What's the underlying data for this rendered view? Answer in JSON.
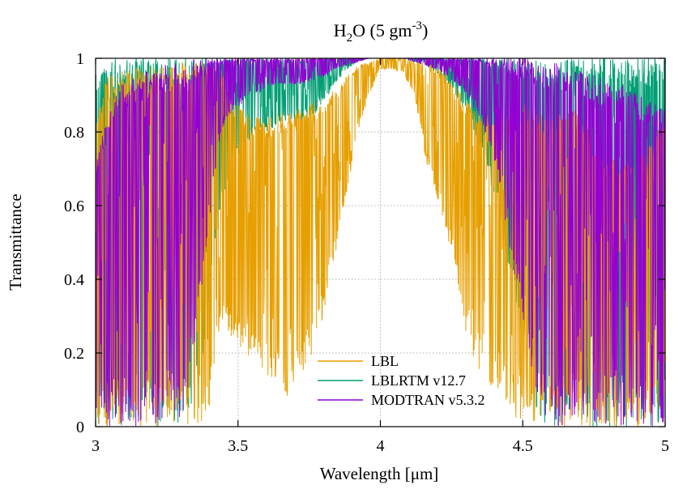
{
  "chart_data": {
    "type": "line",
    "title": {
      "base": "H",
      "base_sub": "2",
      "mid": "O (5 gm",
      "mid_sup": "-3",
      "end": ")"
    },
    "xlabel": "Wavelength  [μm]",
    "ylabel": "Transmittance",
    "xlim": [
      3,
      5
    ],
    "ylim": [
      0,
      1
    ],
    "x_ticks": [
      "3",
      "3.5",
      "4",
      "4.5",
      "5"
    ],
    "x_tick_values": [
      3,
      3.5,
      4,
      4.5,
      5
    ],
    "y_ticks": [
      "0",
      "0.2",
      "0.4",
      "0.6",
      "0.8",
      "1"
    ],
    "y_tick_values": [
      0,
      0.2,
      0.4,
      0.6,
      0.8,
      1
    ],
    "grid": true,
    "legend_position": "bottom-center",
    "series": [
      {
        "name": "LBL",
        "color": "#e69f00",
        "x": [
          3.0,
          3.04,
          3.08,
          3.12,
          3.16,
          3.2,
          3.24,
          3.28,
          3.32,
          3.36,
          3.4,
          3.44,
          3.48,
          3.52,
          3.56,
          3.6,
          3.64,
          3.68,
          3.72,
          3.76,
          3.8,
          3.84,
          3.88,
          3.92,
          3.96,
          4.0,
          4.04,
          4.08,
          4.12,
          4.16,
          4.2,
          4.24,
          4.28,
          4.32,
          4.36,
          4.4,
          4.44,
          4.48,
          4.52,
          4.56,
          4.6,
          4.64,
          4.68,
          4.72,
          4.76,
          4.8,
          4.84,
          4.88,
          4.92,
          4.96,
          5.0
        ],
        "envelope_max": [
          0.85,
          0.95,
          0.97,
          0.98,
          0.97,
          0.98,
          0.98,
          0.99,
          0.99,
          0.99,
          0.99,
          0.98,
          0.9,
          0.86,
          0.84,
          0.84,
          0.85,
          0.87,
          0.86,
          0.88,
          0.89,
          0.92,
          0.95,
          0.98,
          0.99,
          1.0,
          1.0,
          1.0,
          0.99,
          0.99,
          0.98,
          0.95,
          0.91,
          0.87,
          0.85,
          0.84,
          0.85,
          0.87,
          0.88,
          0.85,
          0.84,
          0.85,
          0.86,
          0.82,
          0.78,
          0.75,
          0.72,
          0.72,
          0.74,
          0.8,
          0.84
        ],
        "envelope_min": [
          0.0,
          0.0,
          0.0,
          0.0,
          0.0,
          0.0,
          0.0,
          0.0,
          0.0,
          0.0,
          0.0,
          0.3,
          0.22,
          0.2,
          0.18,
          0.12,
          0.1,
          0.08,
          0.14,
          0.18,
          0.3,
          0.45,
          0.62,
          0.8,
          0.9,
          0.97,
          0.97,
          0.96,
          0.9,
          0.72,
          0.62,
          0.5,
          0.32,
          0.2,
          0.12,
          0.08,
          0.05,
          0.02,
          0.0,
          0.0,
          0.0,
          0.0,
          0.0,
          0.0,
          0.0,
          0.0,
          0.0,
          0.0,
          0.0,
          0.0,
          0.0
        ]
      },
      {
        "name": "LBLRTM v12.7",
        "color": "#009e73",
        "x": [
          3.0,
          3.04,
          3.08,
          3.12,
          3.16,
          3.2,
          3.24,
          3.28,
          3.32,
          3.36,
          3.4,
          3.44,
          3.48,
          3.52,
          3.56,
          3.6,
          3.64,
          3.68,
          3.72,
          3.76,
          3.8,
          3.84,
          3.88,
          3.92,
          3.96,
          4.0,
          4.04,
          4.08,
          4.12,
          4.16,
          4.2,
          4.24,
          4.28,
          4.32,
          4.36,
          4.4,
          4.44,
          4.48,
          4.52,
          4.56,
          4.6,
          4.64,
          4.68,
          4.72,
          4.76,
          4.8,
          4.84,
          4.88,
          4.92,
          4.96,
          5.0
        ],
        "envelope_max": [
          0.97,
          0.99,
          1.0,
          1.0,
          1.0,
          1.0,
          1.0,
          1.0,
          1.0,
          1.0,
          1.0,
          1.0,
          1.0,
          1.0,
          1.0,
          1.0,
          1.0,
          1.0,
          1.0,
          1.0,
          1.0,
          1.0,
          1.0,
          1.0,
          1.0,
          1.0,
          1.0,
          1.0,
          1.0,
          1.0,
          1.0,
          1.0,
          1.0,
          1.0,
          1.0,
          1.0,
          1.0,
          1.0,
          1.0,
          1.0,
          1.0,
          1.0,
          1.0,
          1.0,
          1.0,
          1.0,
          1.0,
          1.0,
          1.0,
          1.0,
          1.0
        ],
        "envelope_min": [
          0.0,
          0.0,
          0.0,
          0.0,
          0.0,
          0.0,
          0.0,
          0.0,
          0.0,
          0.1,
          0.3,
          0.6,
          0.72,
          0.75,
          0.78,
          0.8,
          0.82,
          0.83,
          0.82,
          0.84,
          0.88,
          0.93,
          0.97,
          0.99,
          1.0,
          1.0,
          1.0,
          1.0,
          0.99,
          0.98,
          0.96,
          0.93,
          0.88,
          0.82,
          0.74,
          0.62,
          0.45,
          0.3,
          0.15,
          0.0,
          0.0,
          0.0,
          0.0,
          0.0,
          0.0,
          0.0,
          0.0,
          0.0,
          0.0,
          0.0,
          0.0
        ]
      },
      {
        "name": "MODTRAN v5.3.2",
        "color": "#9400d3",
        "x": [
          3.0,
          3.04,
          3.08,
          3.12,
          3.16,
          3.2,
          3.24,
          3.28,
          3.32,
          3.36,
          3.4,
          3.44,
          3.48,
          3.52,
          3.56,
          3.6,
          3.64,
          3.68,
          3.72,
          3.76,
          3.8,
          3.84,
          3.88,
          3.92,
          3.96,
          4.0,
          4.04,
          4.08,
          4.12,
          4.16,
          4.2,
          4.24,
          4.28,
          4.32,
          4.36,
          4.4,
          4.44,
          4.48,
          4.52,
          4.56,
          4.6,
          4.64,
          4.68,
          4.72,
          4.76,
          4.8,
          4.84,
          4.88,
          4.92,
          4.96,
          5.0
        ],
        "envelope_max": [
          0.7,
          0.85,
          0.92,
          0.95,
          0.96,
          0.97,
          0.98,
          0.99,
          0.99,
          1.0,
          1.0,
          1.0,
          1.0,
          1.0,
          1.0,
          1.0,
          1.0,
          1.0,
          1.0,
          1.0,
          1.0,
          1.0,
          1.0,
          1.0,
          1.0,
          1.0,
          1.0,
          1.0,
          1.0,
          1.0,
          1.0,
          1.0,
          1.0,
          1.0,
          1.0,
          1.0,
          1.0,
          1.0,
          1.0,
          0.99,
          0.99,
          0.98,
          0.97,
          0.96,
          0.95,
          0.94,
          0.93,
          0.92,
          0.9,
          0.88,
          0.87
        ],
        "envelope_min": [
          0.0,
          0.0,
          0.0,
          0.0,
          0.0,
          0.0,
          0.0,
          0.0,
          0.05,
          0.3,
          0.55,
          0.8,
          0.86,
          0.88,
          0.9,
          0.92,
          0.93,
          0.93,
          0.93,
          0.94,
          0.95,
          0.97,
          0.98,
          0.99,
          1.0,
          1.0,
          1.0,
          1.0,
          0.99,
          0.98,
          0.97,
          0.95,
          0.92,
          0.88,
          0.82,
          0.72,
          0.55,
          0.35,
          0.2,
          0.05,
          0.0,
          0.0,
          0.0,
          0.0,
          0.0,
          0.0,
          0.0,
          0.0,
          0.0,
          0.0,
          0.0
        ]
      }
    ]
  }
}
